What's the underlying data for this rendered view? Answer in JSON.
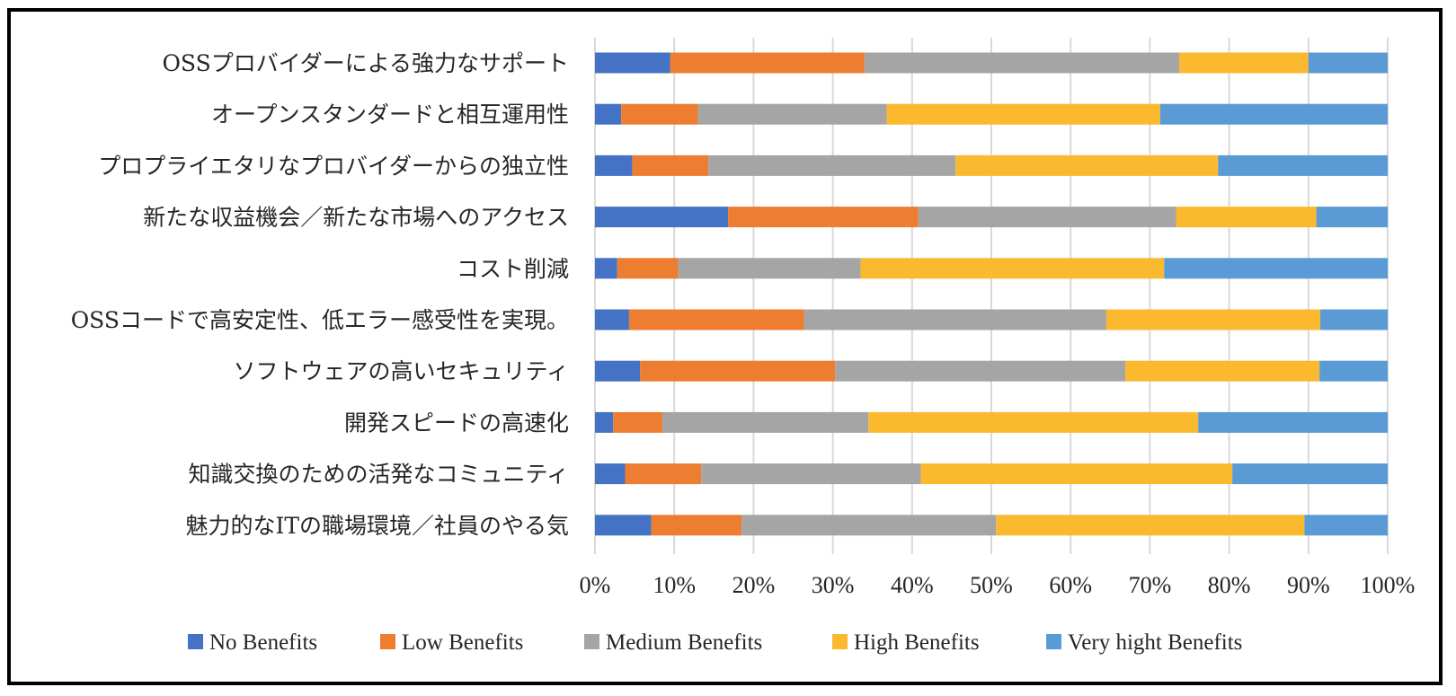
{
  "chart_data": {
    "type": "bar",
    "orientation": "horizontal",
    "stacked": "percent",
    "categories": [
      "OSSプロバイダーによる強力なサポート",
      "オープンスタンダードと相互運用性",
      "プロプライエタリなプロバイダーからの独立性",
      "新たな収益機会／新たな市場へのアクセス",
      "コスト削減",
      "OSSコードで高安定性、低エラー感受性を実現。",
      "ソフトウェアの高いセキュリティ",
      "開発スピードの高速化",
      "知識交換のための活発なコミュニティ",
      "魅力的なITの職場環境／社員のやる気"
    ],
    "series": [
      {
        "name": "No Benefits",
        "color": "#4472c4",
        "values": [
          9.5,
          3.3,
          4.7,
          16.8,
          2.8,
          4.3,
          5.7,
          2.3,
          3.8,
          7.1
        ]
      },
      {
        "name": "Low Benefits",
        "color": "#ed7d31",
        "values": [
          24.5,
          9.7,
          9.6,
          24.0,
          7.7,
          22.1,
          24.6,
          6.2,
          9.6,
          11.4
        ]
      },
      {
        "name": "Medium Benefits",
        "color": "#a5a5a5",
        "values": [
          39.7,
          23.8,
          31.2,
          32.5,
          23.0,
          38.1,
          36.6,
          26.0,
          27.7,
          32.1
        ]
      },
      {
        "name": "High Benefits",
        "color": "#fbb930",
        "values": [
          16.3,
          34.5,
          33.1,
          17.7,
          38.3,
          27.0,
          24.5,
          41.6,
          39.3,
          38.9
        ]
      },
      {
        "name": "Very hight Benefits",
        "color": "#5b9bd5",
        "values": [
          10.0,
          28.7,
          21.4,
          9.0,
          28.2,
          8.5,
          8.6,
          23.9,
          19.6,
          10.5
        ]
      }
    ],
    "xlim": [
      0,
      100
    ],
    "xticks": [
      "0%",
      "10%",
      "20%",
      "30%",
      "40%",
      "50%",
      "60%",
      "70%",
      "80%",
      "90%",
      "100%"
    ],
    "grid": true,
    "legend": "bottom"
  }
}
